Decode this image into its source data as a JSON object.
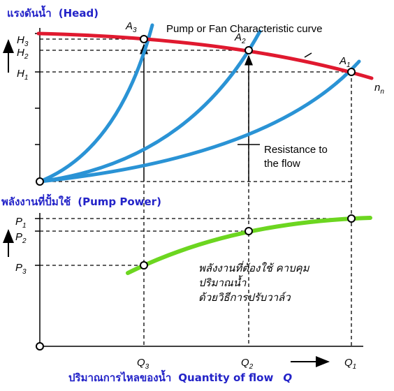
{
  "top_title_thai": "แรงดันน้ำ",
  "top_title_en": "(Head)",
  "bottom_title_thai": "พลังงานที่ปั้มใช้",
  "bottom_title_en": "(Pump Power)",
  "pump_curve_label": "Pump or Fan Characteristic curve",
  "resistance_label_1": "Resistance to",
  "resistance_label_2": "the flow",
  "speed_label": "n",
  "speed_sub": "n",
  "head_levels": [
    {
      "letter": "H",
      "sub": "3"
    },
    {
      "letter": "H",
      "sub": "2"
    },
    {
      "letter": "H",
      "sub": "1"
    }
  ],
  "points": [
    {
      "letter": "A",
      "sub": "3"
    },
    {
      "letter": "A",
      "sub": "2"
    },
    {
      "letter": "A",
      "sub": "1"
    }
  ],
  "power_levels": [
    {
      "letter": "P",
      "sub": "1"
    },
    {
      "letter": "P",
      "sub": "2"
    },
    {
      "letter": "P",
      "sub": "3"
    }
  ],
  "flow_levels": [
    {
      "letter": "Q",
      "sub": "3"
    },
    {
      "letter": "Q",
      "sub": "2"
    },
    {
      "letter": "Q",
      "sub": "1"
    }
  ],
  "valve_note": [
    "พลังงานที่ต้องใช้ คาบคุม",
    "ปริมาณน้ำ",
    "ด้วยวิธีการปรับวาล์ว"
  ],
  "x_title_thai": "ปริมาณการไหลของน้ำ",
  "x_title_en": "Quantity of flow",
  "x_title_symbol": "Q",
  "colors": {
    "pump_curve": "#e0192f",
    "system_curves": "#2a93d5",
    "power_curve": "#6cd620",
    "title_blue": "#2323c8"
  }
}
